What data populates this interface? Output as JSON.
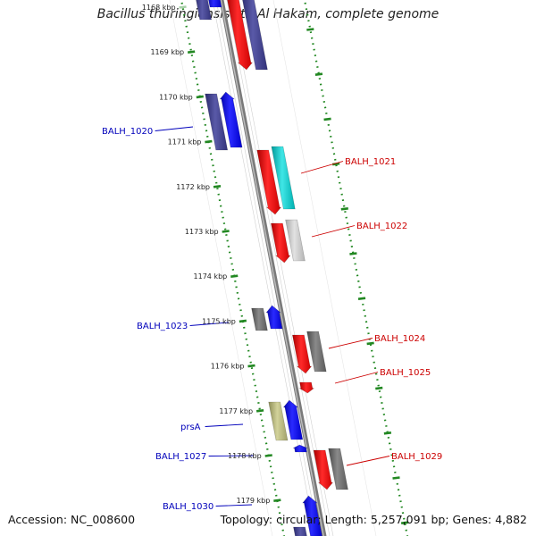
{
  "title": "Bacillus thuringiensis str. Al Hakam, complete genome",
  "footer": {
    "accession": "Accession: NC_008600",
    "summary": "Topology: circular; Length: 5,257,091 bp; Genes: 4,882"
  },
  "ticks": [
    {
      "label": "1168 kbp",
      "faded": true
    },
    {
      "label": "1169 kbp"
    },
    {
      "label": "1170 kbp"
    },
    {
      "label": "1171 kbp"
    },
    {
      "label": "1172 kbp"
    },
    {
      "label": "1173 kbp"
    },
    {
      "label": "1174 kbp"
    },
    {
      "label": "1175 kbp"
    },
    {
      "label": "1176 kbp"
    },
    {
      "label": "1177 kbp"
    },
    {
      "label": "1178 kbp"
    },
    {
      "label": "1179 kbp"
    }
  ],
  "gene_labels": [
    {
      "text": "BALH_1020",
      "side": "left",
      "color": "#0000bb"
    },
    {
      "text": "BALH_1021",
      "side": "right",
      "color": "#cc0000"
    },
    {
      "text": "BALH_1022",
      "side": "right",
      "color": "#cc0000"
    },
    {
      "text": "BALH_1023",
      "side": "left",
      "color": "#0000bb"
    },
    {
      "text": "BALH_1024",
      "side": "right",
      "color": "#cc0000"
    },
    {
      "text": "BALH_1025",
      "side": "right",
      "color": "#cc0000"
    },
    {
      "text": "prsA",
      "side": "left",
      "color": "#0000bb"
    },
    {
      "text": "BALH_1027",
      "side": "left",
      "color": "#0000bb"
    },
    {
      "text": "BALH_1029",
      "side": "right",
      "color": "#cc0000"
    },
    {
      "text": "BALH_1030",
      "side": "left",
      "color": "#0000bb"
    }
  ],
  "colors": {
    "forward_gene": "#0000ee",
    "reverse_gene": "#ee0000",
    "backbone": "#888888",
    "ruler": "#228822",
    "navy_track": "#3c3c8c",
    "teal_track": "#00c8c8",
    "gray_track": "#707070",
    "light_gray_track": "#c0c0c0",
    "olive_track": "#b4b478"
  }
}
